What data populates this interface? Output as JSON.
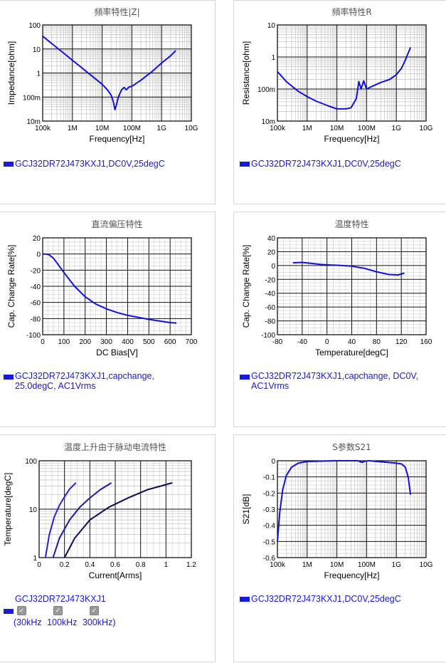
{
  "chart_data": [
    {
      "id": "p1",
      "type": "line",
      "title": "頻率特性|Z|",
      "xlabel": "Frequency[Hz]",
      "ylabel": "Impedance[ohm]",
      "xscale": "log",
      "yscale": "log",
      "xlim": [
        100000,
        10000000000
      ],
      "ylim": [
        0.01,
        100
      ],
      "xticks": [
        "100k",
        "1M",
        "10M",
        "100M",
        "1G",
        "10G"
      ],
      "yticks": [
        "10m",
        "100m",
        "1",
        "10",
        "100"
      ],
      "series": [
        {
          "name": "GCJ32DR72J473KXJ1,DC0V,25degC",
          "color": "#1010dd",
          "x": [
            100000,
            200000,
            500000,
            1000000,
            2000000,
            5000000,
            10000000,
            15000000,
            20000000,
            24000000,
            27000000,
            30000000,
            35000000,
            45000000,
            55000000,
            65000000,
            80000000,
            100000000,
            200000000,
            500000000,
            1000000000,
            2000000000,
            3000000000
          ],
          "y": [
            34,
            17,
            6.8,
            3.4,
            1.7,
            0.68,
            0.34,
            0.2,
            0.12,
            0.06,
            0.03,
            0.045,
            0.1,
            0.2,
            0.25,
            0.2,
            0.26,
            0.28,
            0.5,
            1.2,
            2.6,
            5.2,
            8.5
          ]
        }
      ]
    },
    {
      "id": "p2",
      "type": "line",
      "title": "頻率特性R",
      "xlabel": "Frequency[Hz]",
      "ylabel": "Resistance[ohm]",
      "xscale": "log",
      "yscale": "log",
      "xlim": [
        100000,
        10000000000
      ],
      "ylim": [
        0.01,
        10
      ],
      "xticks": [
        "100k",
        "1M",
        "10M",
        "100M",
        "1G",
        "10G"
      ],
      "yticks": [
        "10m",
        "100m",
        "1",
        "10"
      ],
      "series": [
        {
          "name": "GCJ32DR72J473KXJ1,DC0V,25degC",
          "color": "#1010dd",
          "x": [
            100000,
            200000,
            500000,
            1000000,
            2000000,
            5000000,
            10000000,
            20000000,
            30000000,
            45000000,
            55000000,
            65000000,
            80000000,
            100000000,
            150000000,
            300000000,
            600000000,
            1000000000,
            1500000000,
            2000000000,
            3000000000
          ],
          "y": [
            0.35,
            0.17,
            0.085,
            0.058,
            0.042,
            0.03,
            0.024,
            0.024,
            0.026,
            0.05,
            0.17,
            0.1,
            0.18,
            0.1,
            0.12,
            0.16,
            0.2,
            0.28,
            0.45,
            0.8,
            2.0
          ]
        }
      ]
    },
    {
      "id": "p3",
      "type": "line",
      "title": "直流偏压特性",
      "xlabel": "DC Bias[V]",
      "ylabel": "Cap. Change Rate[%]",
      "xlim": [
        0,
        700
      ],
      "ylim": [
        -100,
        20
      ],
      "xticks": [
        "0",
        "100",
        "200",
        "300",
        "400",
        "500",
        "600",
        "700"
      ],
      "yticks": [
        "-100",
        "-80",
        "-60",
        "-40",
        "-20",
        "0",
        "20"
      ],
      "series": [
        {
          "name": "GCJ32DR72J473KXJ1,capchange, 25.0degC, AC1Vrms",
          "color": "#1010dd",
          "x": [
            0,
            15,
            30,
            50,
            70,
            100,
            150,
            200,
            250,
            300,
            350,
            400,
            450,
            500,
            550,
            600,
            630
          ],
          "y": [
            0,
            0,
            -1,
            -5,
            -12,
            -23,
            -40,
            -53,
            -62,
            -68,
            -72.5,
            -76,
            -78.5,
            -81,
            -83,
            -85,
            -85.5
          ]
        }
      ]
    },
    {
      "id": "p4",
      "type": "line",
      "title": "温度特性",
      "xlabel": "Temperature[degC]",
      "ylabel": "Cap. Change Rate[%]",
      "xlim": [
        -80,
        160
      ],
      "ylim": [
        -100,
        40
      ],
      "xticks": [
        "-80",
        "-40",
        "0",
        "40",
        "80",
        "120",
        "160"
      ],
      "yticks": [
        "-100",
        "-80",
        "-60",
        "-40",
        "-20",
        "0",
        "20",
        "40"
      ],
      "series": [
        {
          "name": "GCJ32DR72J473KXJ1,capchange, DC0V, AC1Vrms",
          "color": "#1010dd",
          "x": [
            -55,
            -40,
            -25,
            -10,
            0,
            25,
            40,
            60,
            80,
            100,
            115,
            125
          ],
          "y": [
            4,
            4.5,
            3,
            1.5,
            1,
            0,
            -1,
            -4,
            -9,
            -13,
            -13.5,
            -11
          ]
        }
      ]
    },
    {
      "id": "p5",
      "type": "line",
      "title": "温度上升由于脉动电流特性",
      "xlabel": "Current[Arms]",
      "ylabel": "Temperature[degC]",
      "xlim": [
        0,
        1.2
      ],
      "ylim": [
        1,
        100
      ],
      "yscale": "log",
      "xticks": [
        "0",
        "0.2",
        "0.4",
        "0.6",
        "0.8",
        "1",
        "1.2"
      ],
      "yticks": [
        "1",
        "10",
        "100"
      ],
      "series": [
        {
          "name": "30kHz",
          "color": "#2222dd",
          "x": [
            0.05,
            0.08,
            0.12,
            0.16,
            0.2,
            0.24,
            0.29
          ],
          "y": [
            1,
            3,
            7,
            12,
            18,
            26,
            35
          ]
        },
        {
          "name": "100kHz",
          "color": "#1818aa",
          "x": [
            0.11,
            0.16,
            0.24,
            0.32,
            0.4,
            0.48,
            0.57
          ],
          "y": [
            1,
            2.5,
            6,
            11,
            17,
            25,
            35
          ]
        },
        {
          "name": "300kHz",
          "color": "#0c0c55",
          "x": [
            0.2,
            0.28,
            0.4,
            0.55,
            0.7,
            0.85,
            1.05
          ],
          "y": [
            1,
            2.5,
            6,
            11,
            17,
            25,
            35
          ]
        }
      ]
    },
    {
      "id": "p6",
      "type": "line",
      "title": "S参数S21",
      "xlabel": "Frequency[Hz]",
      "ylabel": "S21[dB]",
      "xscale": "log",
      "xlim": [
        100000,
        10000000000
      ],
      "ylim": [
        -0.6,
        0
      ],
      "xticks": [
        "100k",
        "1M",
        "10M",
        "100M",
        "1G",
        "10G"
      ],
      "yticks": [
        "-0.6",
        "-0.5",
        "-0.4",
        "-0.3",
        "-0.2",
        "-0.1",
        "0"
      ],
      "series": [
        {
          "name": "GCJ32DR72J473KXJ1,DC0V,25degC",
          "color": "#1010dd",
          "x": [
            100000,
            120000,
            150000,
            200000,
            300000,
            500000,
            1000000,
            3000000,
            10000000,
            50000000,
            70000000,
            90000000,
            120000000,
            500000000,
            1000000000,
            1500000000,
            2000000000,
            2500000000,
            3000000000
          ],
          "y": [
            -0.5,
            -0.32,
            -0.18,
            -0.09,
            -0.04,
            -0.015,
            -0.005,
            -0.002,
            0,
            0,
            -0.01,
            -0.002,
            0,
            -0.01,
            -0.015,
            -0.02,
            -0.04,
            -0.1,
            -0.21
          ]
        }
      ]
    }
  ],
  "legends": {
    "p1": "GCJ32DR72J473KXJ1,DC0V,25degC",
    "p2": "GCJ32DR72J473KXJ1,DC0V,25degC",
    "p3": [
      "GCJ32DR72J473KXJ1,capchange,",
      "25.0degC, AC1Vrms"
    ],
    "p4": [
      "GCJ32DR72J473KXJ1,capchange, DC0V,",
      "AC1Vrms"
    ],
    "p5": {
      "name": "GCJ32DR72J473KXJ1",
      "checkbox_labels": [
        "(30kHz",
        "100kHz",
        "300kHz)"
      ]
    },
    "p6": "GCJ32DR72J473KXJ1,DC0V,25degC"
  }
}
